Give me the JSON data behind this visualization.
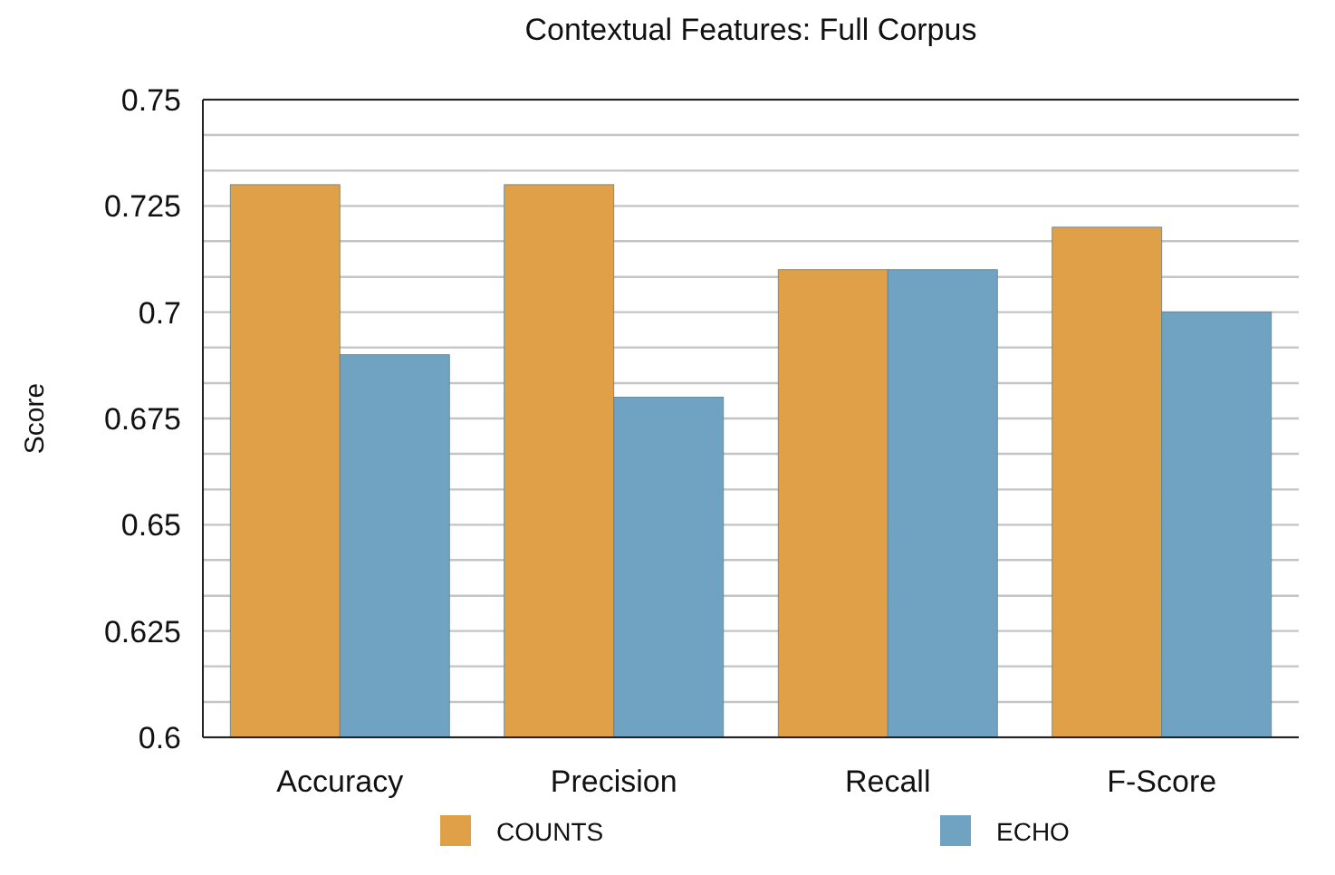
{
  "chart_data": {
    "type": "bar",
    "title": "Contextual Features: Full Corpus",
    "ylabel": "Score",
    "categories": [
      "Accuracy",
      "Precision",
      "Recall",
      "F-Score"
    ],
    "series": [
      {
        "name": "COUNTS",
        "color": "#dfa047",
        "values": [
          0.73,
          0.73,
          0.71,
          0.72
        ]
      },
      {
        "name": "ECHO",
        "color": "#6fa3c1",
        "values": [
          0.69,
          0.68,
          0.71,
          0.7
        ]
      }
    ],
    "ylim": [
      0.6,
      0.75
    ],
    "yticks": [
      0.6,
      {
        "value": 0.6083,
        "label": null
      },
      {
        "value": 0.6167,
        "label": null
      },
      0.625,
      {
        "value": 0.6333,
        "label": null
      },
      {
        "value": 0.6417,
        "label": null
      },
      0.65,
      {
        "value": 0.6583,
        "label": null
      },
      {
        "value": 0.6667,
        "label": null
      },
      0.675,
      {
        "value": 0.6833,
        "label": null
      },
      {
        "value": 0.6917,
        "label": null
      },
      0.7,
      {
        "value": 0.7083,
        "label": null
      },
      {
        "value": 0.7167,
        "label": null
      },
      0.725,
      {
        "value": 0.7333,
        "label": null
      },
      {
        "value": 0.7417,
        "label": null
      },
      0.75
    ],
    "grid": true,
    "legend": "bottom"
  }
}
